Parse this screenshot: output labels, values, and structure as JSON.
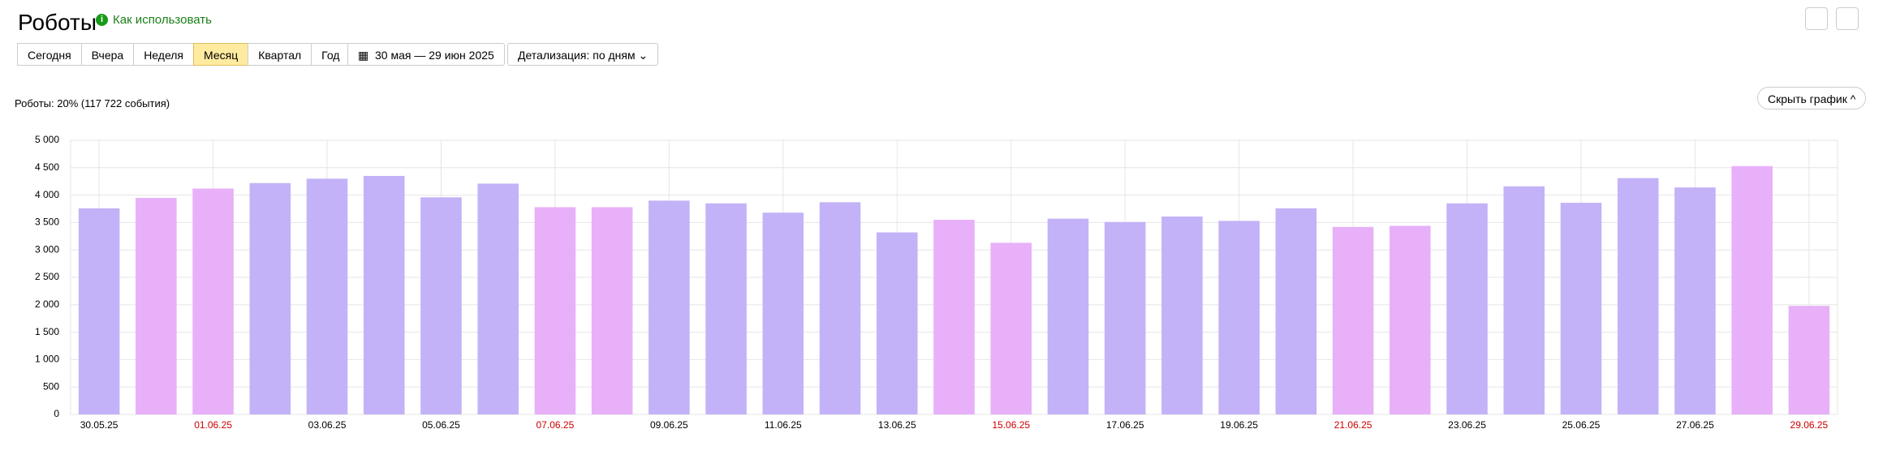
{
  "header": {
    "title": "Роботы",
    "help": "Как использовать"
  },
  "toolbar": {
    "periods": [
      {
        "label": "Сегодня",
        "active": false
      },
      {
        "label": "Вчера",
        "active": false
      },
      {
        "label": "Неделя",
        "active": false
      },
      {
        "label": "Месяц",
        "active": true
      },
      {
        "label": "Квартал",
        "active": false
      },
      {
        "label": "Год",
        "active": false
      }
    ],
    "date_range": "30 мая — 29 июн 2025",
    "detail": "Детализация: по дням"
  },
  "summary": "Роботы: 20% (117 722 события)",
  "hide_chart": "Скрыть график",
  "chart_data": {
    "type": "bar",
    "categories": [
      "30.05.25",
      null,
      "01.06.25",
      null,
      "03.06.25",
      null,
      "05.06.25",
      null,
      "07.06.25",
      null,
      "09.06.25",
      null,
      "11.06.25",
      null,
      "13.06.25",
      null,
      "15.06.25",
      null,
      "17.06.25",
      null,
      "19.06.25",
      null,
      "21.06.25",
      null,
      "23.06.25",
      null,
      "25.06.25",
      null,
      "27.06.25",
      null,
      "29.06.25"
    ],
    "category_colors": [
      "#000000",
      null,
      "#cc0000",
      null,
      "#000000",
      null,
      "#000000",
      null,
      "#cc0000",
      null,
      "#000000",
      null,
      "#000000",
      null,
      "#000000",
      null,
      "#cc0000",
      null,
      "#000000",
      null,
      "#000000",
      null,
      "#cc0000",
      null,
      "#000000",
      null,
      "#000000",
      null,
      "#000000",
      null,
      "#cc0000"
    ],
    "values": [
      3760,
      3950,
      4120,
      4220,
      4300,
      4350,
      3960,
      4210,
      3780,
      3780,
      3900,
      3850,
      3680,
      3870,
      3320,
      3550,
      3130,
      3570,
      3510,
      3610,
      3530,
      3760,
      3420,
      3440,
      3850,
      4160,
      3860,
      4310,
      4140,
      4530,
      1980
    ],
    "colors": [
      "#c3b2f7",
      "#e8b0f9",
      "#e8b0f9",
      "#c3b2f7",
      "#c3b2f7",
      "#c3b2f7",
      "#c3b2f7",
      "#c3b2f7",
      "#e8b0f9",
      "#e8b0f9",
      "#c3b2f7",
      "#c3b2f7",
      "#c3b2f7",
      "#c3b2f7",
      "#c3b2f7",
      "#e8b0f9",
      "#e8b0f9",
      "#c3b2f7",
      "#c3b2f7",
      "#c3b2f7",
      "#c3b2f7",
      "#c3b2f7",
      "#e8b0f9",
      "#e8b0f9",
      "#c3b2f7",
      "#c3b2f7",
      "#c3b2f7",
      "#c3b2f7",
      "#c3b2f7",
      "#e8b0f9",
      "#e8b0f9"
    ],
    "ylim": [
      0,
      5000
    ],
    "yticks": [
      0,
      500,
      {
        "value": 1000,
        "label": "1 000"
      },
      {
        "value": 1500,
        "label": "1 500"
      },
      {
        "value": 2000,
        "label": "2 000"
      },
      {
        "value": 2500,
        "label": "2 500"
      },
      {
        "value": 3000,
        "label": "3 000"
      },
      {
        "value": 3500,
        "label": "3 500"
      },
      {
        "value": 4000,
        "label": "4 000"
      },
      {
        "value": 4500,
        "label": "4 500"
      },
      {
        "value": 5000,
        "label": "5 000"
      }
    ],
    "grid": true
  }
}
